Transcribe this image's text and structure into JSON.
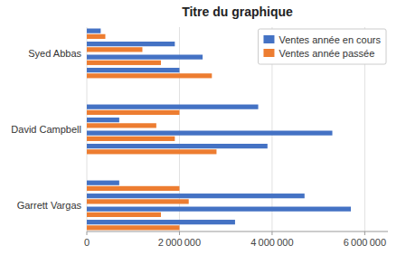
{
  "chart_data": {
    "type": "bar",
    "orientation": "horizontal",
    "title": "Titre du graphique",
    "categories": [
      "Syed Abbas",
      null,
      null,
      null,
      "David Campbell",
      null,
      null,
      null,
      "Garrett Vargas",
      null,
      null,
      null
    ],
    "series": [
      {
        "name": "Ventes année en cours",
        "color": "#4472C4",
        "values": [
          300000,
          1900000,
          2500000,
          2000000,
          3700000,
          700000,
          5300000,
          3900000,
          700000,
          4700000,
          5700000,
          3200000
        ]
      },
      {
        "name": "Ventes année passée",
        "color": "#ED7D31",
        "values": [
          400000,
          1200000,
          1600000,
          2700000,
          2000000,
          1500000,
          1900000,
          2800000,
          2000000,
          2200000,
          1600000,
          2000000
        ]
      }
    ],
    "xlim": [
      0,
      6500000
    ],
    "xticks": [
      0,
      {
        "value": 2000000,
        "label": "2 000 000"
      },
      {
        "value": 4000000,
        "label": "4 000 000"
      },
      {
        "value": 6000000,
        "label": "6 000 000"
      }
    ],
    "grid": true,
    "legend": "upper right"
  }
}
